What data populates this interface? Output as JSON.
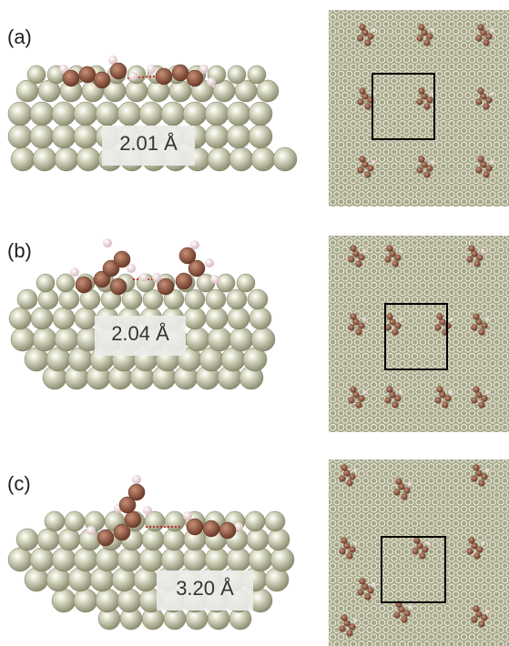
{
  "panels": [
    {
      "label": "(a)",
      "distance": "2.01 Å"
    },
    {
      "label": "(b)",
      "distance": "2.04 Å"
    },
    {
      "label": "(c)",
      "distance": "3.20 Å"
    }
  ],
  "colors": {
    "metal": "#b8b99c",
    "metal_light": "#e6e7d4",
    "carbon": "#9a5e48",
    "carbon_light": "#c99078",
    "hydrogen": "#f0d6d8",
    "bond_line": "#c0302c",
    "cell_box": "#000000",
    "lattice": "#7f8068",
    "lattice_bg": "#a7a88b"
  }
}
